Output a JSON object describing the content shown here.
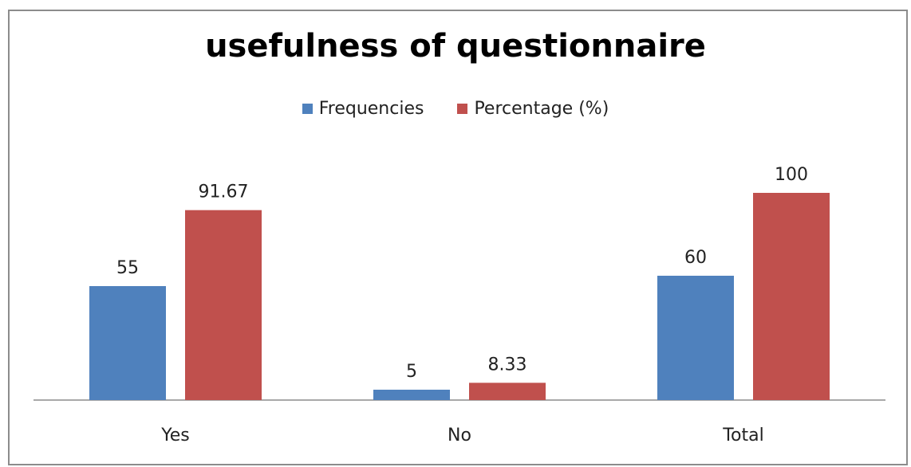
{
  "chart_data": {
    "type": "bar",
    "title": "usefulness of questionnaire",
    "categories": [
      "Yes",
      "No",
      "Total"
    ],
    "series": [
      {
        "name": "Frequencies",
        "color": "#4F81BD",
        "values": [
          55,
          5,
          60
        ],
        "labels": [
          "55",
          "5",
          "60"
        ]
      },
      {
        "name": "Percentage (%)",
        "color": "#C0504D",
        "values": [
          91.67,
          8.33,
          100
        ],
        "labels": [
          "91.67",
          "8.33",
          "100"
        ]
      }
    ],
    "ylim": [
      0,
      100
    ],
    "grid": false,
    "legend_position": "top"
  }
}
